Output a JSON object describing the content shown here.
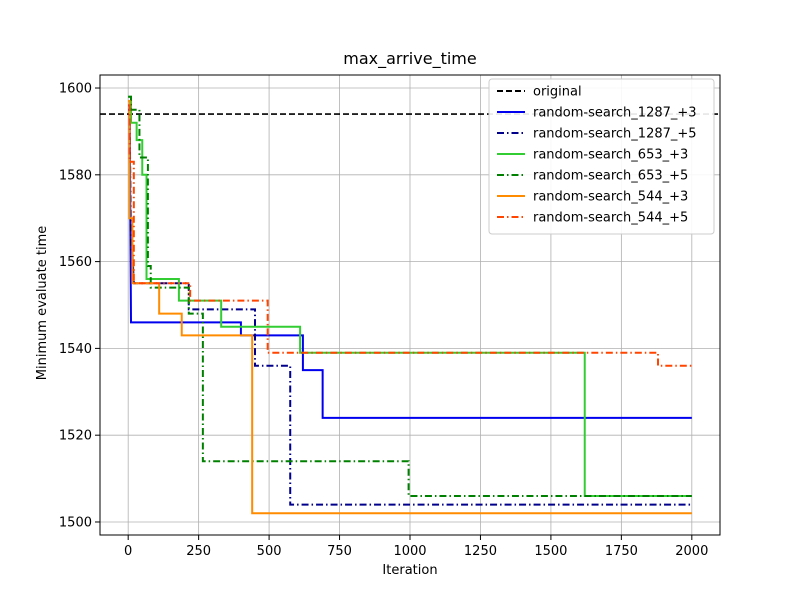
{
  "chart_data": {
    "type": "line",
    "title": "max_arrive_time",
    "xlabel": "Iteration",
    "ylabel": "Minimum evaluate time",
    "xlim": [
      -100,
      2100
    ],
    "ylim": [
      1497,
      1603
    ],
    "xticks": [
      0,
      250,
      500,
      750,
      1000,
      1250,
      1500,
      1750,
      2000
    ],
    "yticks": [
      1500,
      1520,
      1540,
      1560,
      1580,
      1600
    ],
    "grid": true,
    "legend_position": "top-right",
    "baseline": {
      "name": "original",
      "value": 1594,
      "color": "#000000",
      "dash": "dashed"
    },
    "series": [
      {
        "name": "random-search_1287_+3",
        "color": "#0000ee",
        "dash": "solid",
        "x": [
          0,
          5,
          10,
          400,
          400,
          620,
          620,
          690,
          690,
          2000
        ],
        "y": [
          1596,
          1596,
          1546,
          1546,
          1543,
          1543,
          1535,
          1535,
          1524,
          1524
        ]
      },
      {
        "name": "random-search_1287_+5",
        "color": "#00008b",
        "dash": "dashdot",
        "x": [
          0,
          5,
          10,
          15,
          20,
          215,
          215,
          450,
          450,
          575,
          575,
          2000
        ],
        "y": [
          1595,
          1595,
          1562,
          1562,
          1555,
          1555,
          1549,
          1549,
          1536,
          1536,
          1504,
          1504
        ]
      },
      {
        "name": "random-search_653_+3",
        "color": "#32cd32",
        "dash": "solid",
        "x": [
          0,
          10,
          10,
          30,
          30,
          50,
          50,
          65,
          65,
          180,
          180,
          330,
          330,
          610,
          610,
          1620,
          1620,
          1620,
          1620,
          2000
        ],
        "y": [
          1598,
          1598,
          1592,
          1592,
          1588,
          1588,
          1580,
          1580,
          1556,
          1556,
          1551,
          1551,
          1545,
          1545,
          1539,
          1539,
          1539,
          1506,
          1506,
          1506
        ]
      },
      {
        "name": "random-search_653_+5",
        "color": "#008000",
        "dash": "dashdot",
        "x": [
          0,
          10,
          10,
          40,
          40,
          70,
          70,
          80,
          80,
          215,
          215,
          265,
          265,
          995,
          995,
          2000
        ],
        "y": [
          1598,
          1598,
          1595,
          1595,
          1584,
          1584,
          1559,
          1559,
          1554,
          1554,
          1548,
          1548,
          1514,
          1514,
          1506,
          1506
        ]
      },
      {
        "name": "random-search_544_+3",
        "color": "#ff8c00",
        "dash": "solid",
        "x": [
          0,
          5,
          5,
          15,
          15,
          110,
          110,
          190,
          190,
          440,
          440,
          2000
        ],
        "y": [
          1597,
          1597,
          1570,
          1570,
          1555,
          1555,
          1548,
          1548,
          1543,
          1543,
          1502,
          1502
        ]
      },
      {
        "name": "random-search_544_+5",
        "color": "#ff4500",
        "dash": "dashdot",
        "x": [
          0,
          5,
          5,
          20,
          20,
          220,
          220,
          495,
          495,
          1880,
          1880,
          2000
        ],
        "y": [
          1596,
          1596,
          1583,
          1583,
          1555,
          1555,
          1551,
          1551,
          1539,
          1539,
          1536,
          1536
        ]
      }
    ]
  }
}
